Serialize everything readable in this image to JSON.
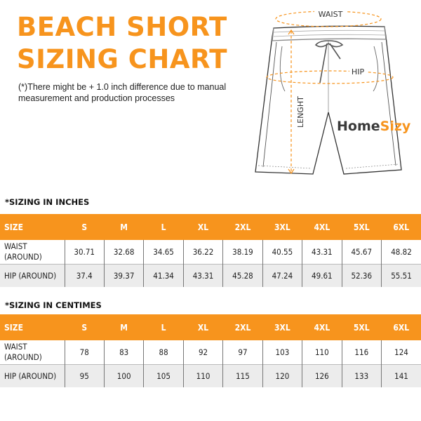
{
  "title": [
    "BEACH SHORT",
    "SIZING CHART"
  ],
  "note": "(*)There might be + 1.0 inch difference due to manual measurement and production processes",
  "diagram": {
    "waist_label": "WAIST",
    "hip_label": "HIP",
    "length_label": "LENGHT",
    "logo": {
      "part1": "Home",
      "part2": "Sizy"
    }
  },
  "colors": {
    "accent": "#f7941d",
    "logo_dark": "#3a3a3a"
  },
  "inches": {
    "heading": "*SIZING IN INCHES",
    "headers": [
      "SIZE",
      "S",
      "M",
      "L",
      "XL",
      "2XL",
      "3XL",
      "4XL",
      "5XL",
      "6XL"
    ],
    "rows": [
      {
        "label": [
          "WAIST",
          "(AROUND)"
        ],
        "values": [
          "30.71",
          "32.68",
          "34.65",
          "36.22",
          "38.19",
          "40.55",
          "43.31",
          "45.67",
          "48.82"
        ]
      },
      {
        "label": [
          "HIP (AROUND)"
        ],
        "values": [
          "37.4",
          "39.37",
          "41.34",
          "43.31",
          "45.28",
          "47.24",
          "49.61",
          "52.36",
          "55.51"
        ]
      }
    ]
  },
  "centimes": {
    "heading": "*SIZING IN CENTIMES",
    "headers": [
      "SIZE",
      "S",
      "M",
      "L",
      "XL",
      "2XL",
      "3XL",
      "4XL",
      "5XL",
      "6XL"
    ],
    "rows": [
      {
        "label": [
          "WAIST",
          "(AROUND)"
        ],
        "values": [
          "78",
          "83",
          "88",
          "92",
          "97",
          "103",
          "110",
          "116",
          "124"
        ]
      },
      {
        "label": [
          "HIP (AROUND)"
        ],
        "values": [
          "95",
          "100",
          "105",
          "110",
          "115",
          "120",
          "126",
          "133",
          "141"
        ]
      }
    ]
  }
}
